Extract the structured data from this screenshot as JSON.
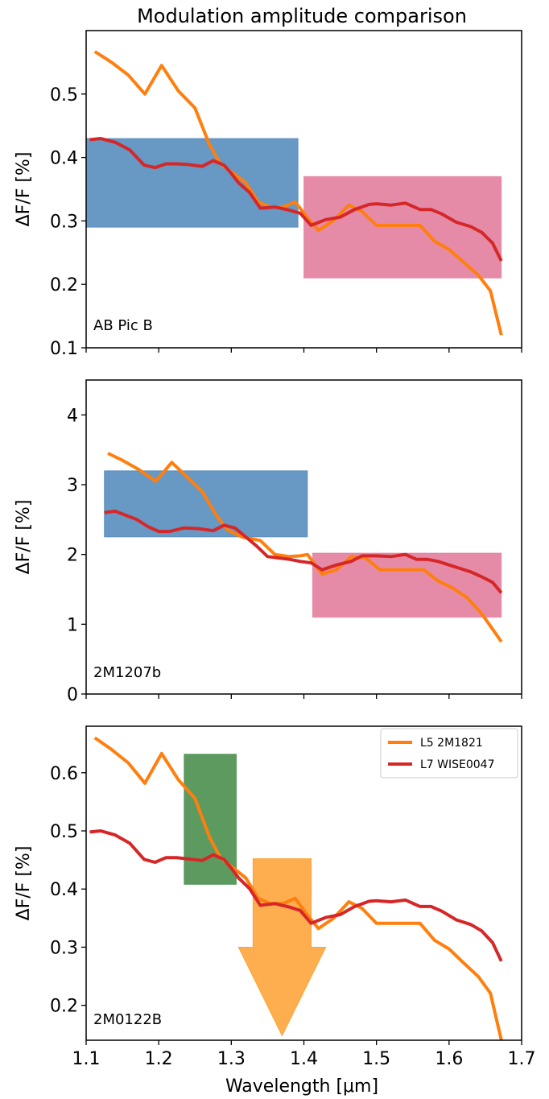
{
  "figure": {
    "title": "Modulation amplitude comparison",
    "xlabel": "Wavelength [μm]",
    "ylabel": "ΔF/F [%]",
    "xticks": [
      "1.1",
      "1.2",
      "1.3",
      "1.4",
      "1.5",
      "1.6",
      "1.7"
    ],
    "legend": [
      {
        "label": "L5 2M1821",
        "color": "#ff7f0e"
      },
      {
        "label": "L7 WISE0047",
        "color": "#d62728"
      }
    ]
  },
  "chart_data": [
    {
      "type": "line",
      "panel_label": "AB Pic B",
      "xlim": [
        1.1,
        1.7
      ],
      "ylim": [
        0.1,
        0.6
      ],
      "yticks": [
        "0.1",
        "0.2",
        "0.3",
        "0.4",
        "0.5"
      ],
      "xlabel": "",
      "ylabel": "ΔF/F [%]",
      "grid": false,
      "boxes": [
        {
          "x0": 1.1,
          "x1": 1.392,
          "y0": 0.29,
          "y1": 0.43,
          "color": "#3e7bb3"
        },
        {
          "x0": 1.4,
          "x1": 1.672,
          "y0": 0.21,
          "y1": 0.37,
          "color": "#de6a8e"
        }
      ],
      "series": [
        {
          "name": "L5 2M1821",
          "color": "#ff7f0e",
          "x": [
            1.112,
            1.135,
            1.158,
            1.181,
            1.204,
            1.227,
            1.25,
            1.27,
            1.285,
            1.303,
            1.32,
            1.337,
            1.354,
            1.371,
            1.388,
            1.405,
            1.42,
            1.44,
            1.462,
            1.48,
            1.5,
            1.52,
            1.54,
            1.56,
            1.58,
            1.6,
            1.62,
            1.64,
            1.657,
            1.672
          ],
          "y": [
            0.567,
            0.55,
            0.53,
            0.5,
            0.545,
            0.505,
            0.478,
            0.42,
            0.39,
            0.375,
            0.36,
            0.33,
            0.322,
            0.322,
            0.33,
            0.305,
            0.285,
            0.3,
            0.325,
            0.315,
            0.293,
            0.293,
            0.293,
            0.293,
            0.268,
            0.255,
            0.235,
            0.215,
            0.19,
            0.12
          ]
        },
        {
          "name": "L7 WISE0047",
          "color": "#d62728",
          "x": [
            1.105,
            1.12,
            1.14,
            1.16,
            1.18,
            1.195,
            1.21,
            1.225,
            1.24,
            1.26,
            1.275,
            1.29,
            1.3,
            1.31,
            1.325,
            1.34,
            1.36,
            1.38,
            1.395,
            1.41,
            1.43,
            1.45,
            1.47,
            1.49,
            1.5,
            1.52,
            1.54,
            1.56,
            1.575,
            1.59,
            1.61,
            1.63,
            1.645,
            1.66,
            1.672
          ],
          "y": [
            0.428,
            0.43,
            0.424,
            0.412,
            0.388,
            0.384,
            0.39,
            0.39,
            0.389,
            0.386,
            0.395,
            0.388,
            0.375,
            0.36,
            0.345,
            0.32,
            0.322,
            0.317,
            0.312,
            0.293,
            0.302,
            0.306,
            0.318,
            0.326,
            0.327,
            0.325,
            0.328,
            0.318,
            0.318,
            0.311,
            0.298,
            0.291,
            0.282,
            0.265,
            0.237
          ]
        }
      ]
    },
    {
      "type": "line",
      "panel_label": "2M1207b",
      "xlim": [
        1.1,
        1.7
      ],
      "ylim": [
        0,
        4.5
      ],
      "yticks": [
        "0",
        "1",
        "2",
        "3",
        "4"
      ],
      "xlabel": "",
      "ylabel": "ΔF/F [%]",
      "grid": false,
      "boxes": [
        {
          "x0": 1.125,
          "x1": 1.405,
          "y0": 2.25,
          "y1": 3.2,
          "color": "#3e7bb3"
        },
        {
          "x0": 1.412,
          "x1": 1.672,
          "y0": 1.1,
          "y1": 2.02,
          "color": "#de6a8e"
        }
      ],
      "series": [
        {
          "name": "L5 2M1821",
          "color": "#ff7f0e",
          "x": [
            1.13,
            1.15,
            1.172,
            1.196,
            1.218,
            1.24,
            1.26,
            1.28,
            1.295,
            1.315,
            1.34,
            1.36,
            1.38,
            1.395,
            1.405,
            1.425,
            1.445,
            1.465,
            1.485,
            1.505,
            1.525,
            1.545,
            1.565,
            1.585,
            1.605,
            1.625,
            1.645,
            1.66,
            1.672
          ],
          "y": [
            3.45,
            3.35,
            3.22,
            3.05,
            3.32,
            3.1,
            2.9,
            2.55,
            2.35,
            2.25,
            2.2,
            2.0,
            1.97,
            1.98,
            2.0,
            1.72,
            1.78,
            1.97,
            1.95,
            1.78,
            1.78,
            1.78,
            1.78,
            1.62,
            1.52,
            1.38,
            1.15,
            0.93,
            0.75
          ]
        },
        {
          "name": "L7 WISE0047",
          "color": "#d62728",
          "x": [
            1.125,
            1.14,
            1.155,
            1.17,
            1.185,
            1.2,
            1.215,
            1.235,
            1.255,
            1.275,
            1.29,
            1.305,
            1.32,
            1.335,
            1.35,
            1.365,
            1.38,
            1.395,
            1.41,
            1.425,
            1.445,
            1.465,
            1.48,
            1.5,
            1.52,
            1.54,
            1.555,
            1.57,
            1.585,
            1.6,
            1.615,
            1.63,
            1.645,
            1.66,
            1.672
          ],
          "y": [
            2.6,
            2.62,
            2.56,
            2.5,
            2.4,
            2.33,
            2.33,
            2.38,
            2.37,
            2.34,
            2.42,
            2.38,
            2.25,
            2.12,
            1.97,
            1.95,
            1.93,
            1.9,
            1.88,
            1.78,
            1.85,
            1.9,
            1.98,
            1.98,
            1.97,
            2.0,
            1.93,
            1.93,
            1.9,
            1.85,
            1.8,
            1.75,
            1.68,
            1.6,
            1.45
          ]
        }
      ]
    },
    {
      "type": "line",
      "panel_label": "2M0122B",
      "xlim": [
        1.1,
        1.7
      ],
      "ylim": [
        0.14,
        0.68
      ],
      "yticks": [
        "0.2",
        "0.3",
        "0.4",
        "0.5",
        "0.6"
      ],
      "xlabel": "Wavelength [μm]",
      "ylabel": "ΔF/F [%]",
      "grid": false,
      "legend_position": "top-right",
      "boxes": [
        {
          "x0": 1.235,
          "x1": 1.307,
          "y0": 0.408,
          "y1": 0.632,
          "color": "#2e7d32"
        }
      ],
      "upper_limit_arrow": {
        "x0": 1.33,
        "x1": 1.41,
        "y_top": 0.452,
        "y_head": 0.3,
        "y_tip": 0.148,
        "head_x0": 1.31,
        "head_x1": 1.43,
        "color": "#ffa030"
      },
      "series": [
        {
          "name": "L5 2M1821",
          "color": "#ff7f0e",
          "x": [
            1.112,
            1.135,
            1.158,
            1.181,
            1.204,
            1.227,
            1.25,
            1.27,
            1.285,
            1.303,
            1.32,
            1.337,
            1.354,
            1.371,
            1.388,
            1.405,
            1.42,
            1.44,
            1.462,
            1.48,
            1.5,
            1.52,
            1.54,
            1.56,
            1.58,
            1.6,
            1.62,
            1.64,
            1.657,
            1.672
          ],
          "y": [
            0.66,
            0.64,
            0.617,
            0.582,
            0.633,
            0.588,
            0.556,
            0.489,
            0.454,
            0.436,
            0.419,
            0.384,
            0.375,
            0.375,
            0.384,
            0.355,
            0.332,
            0.349,
            0.378,
            0.367,
            0.341,
            0.341,
            0.341,
            0.341,
            0.312,
            0.297,
            0.273,
            0.25,
            0.221,
            0.14
          ]
        },
        {
          "name": "L7 WISE0047",
          "color": "#d62728",
          "x": [
            1.105,
            1.12,
            1.14,
            1.16,
            1.18,
            1.195,
            1.21,
            1.225,
            1.24,
            1.26,
            1.275,
            1.29,
            1.3,
            1.31,
            1.325,
            1.34,
            1.36,
            1.38,
            1.395,
            1.41,
            1.43,
            1.45,
            1.47,
            1.49,
            1.5,
            1.52,
            1.54,
            1.56,
            1.575,
            1.59,
            1.61,
            1.63,
            1.645,
            1.66,
            1.672
          ],
          "y": [
            0.498,
            0.5,
            0.493,
            0.479,
            0.451,
            0.446,
            0.454,
            0.454,
            0.452,
            0.449,
            0.459,
            0.451,
            0.436,
            0.419,
            0.401,
            0.372,
            0.375,
            0.369,
            0.363,
            0.341,
            0.351,
            0.356,
            0.37,
            0.379,
            0.38,
            0.378,
            0.381,
            0.37,
            0.37,
            0.362,
            0.347,
            0.339,
            0.328,
            0.308,
            0.276
          ]
        }
      ]
    }
  ]
}
